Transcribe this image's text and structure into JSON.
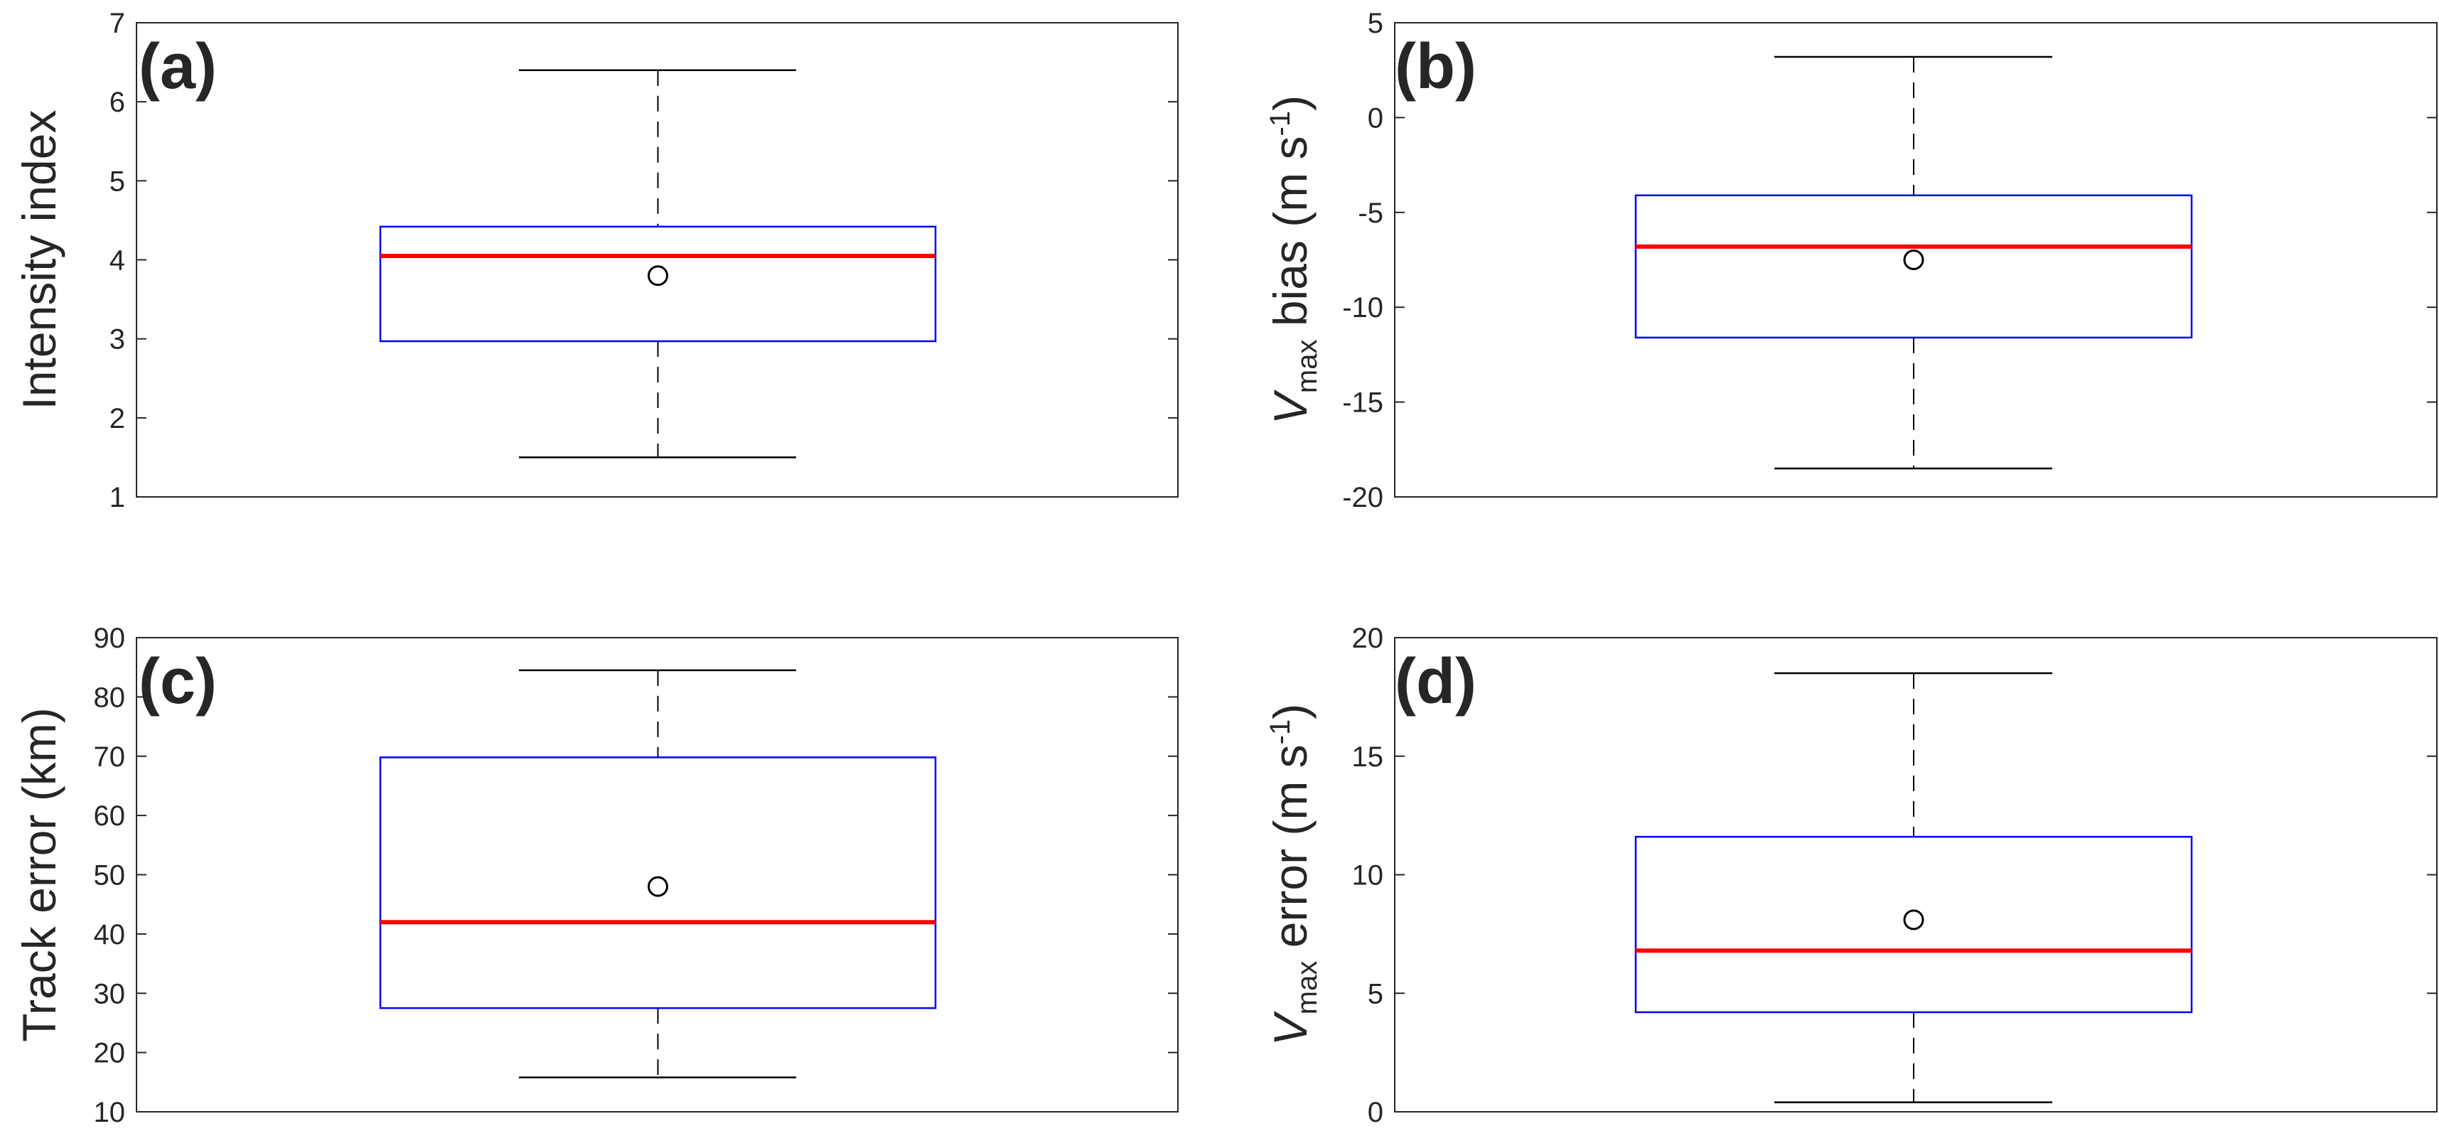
{
  "colors": {
    "box": "#0000ff",
    "median": "#ff0000",
    "whisker": "#000000",
    "axis": "#262626",
    "mean_marker": "#000000"
  },
  "chart_data": [
    {
      "type": "box",
      "panel_label": "(a)",
      "ylabel": {
        "main": "Intensity index"
      },
      "ylim": [
        1,
        7
      ],
      "yticks": [
        "1",
        "2",
        "3",
        "4",
        "5",
        "6",
        "7"
      ],
      "stats": {
        "whisker_low": 1.5,
        "q1": 2.97,
        "median": 4.05,
        "q3": 4.42,
        "whisker_high": 6.4,
        "mean": 3.8
      }
    },
    {
      "type": "box",
      "panel_label": "(b)",
      "ylabel": {
        "var": "V",
        "sub": "max",
        "text": " bias (m s",
        "sup": "-1",
        "close": ")"
      },
      "ylim": [
        -20,
        5
      ],
      "yticks": [
        "-20",
        "-15",
        "-10",
        "-5",
        "0",
        "5"
      ],
      "stats": {
        "whisker_low": -18.5,
        "q1": -11.6,
        "median": -6.8,
        "q3": -4.1,
        "whisker_high": 3.2,
        "mean": -7.5
      }
    },
    {
      "type": "box",
      "panel_label": "(c)",
      "ylabel": {
        "main": "Track error (km)"
      },
      "ylim": [
        10,
        90
      ],
      "yticks": [
        "10",
        "20",
        "30",
        "40",
        "50",
        "60",
        "70",
        "80",
        "90"
      ],
      "stats": {
        "whisker_low": 15.8,
        "q1": 27.5,
        "median": 42.0,
        "q3": 69.8,
        "whisker_high": 84.5,
        "mean": 48.0
      }
    },
    {
      "type": "box",
      "panel_label": "(d)",
      "ylabel": {
        "var": "V",
        "sub": "max",
        "text": " error (m s",
        "sup": "-1",
        "close": ")"
      },
      "ylim": [
        0,
        20
      ],
      "yticks": [
        "0",
        "5",
        "10",
        "15",
        "20"
      ],
      "stats": {
        "whisker_low": 0.4,
        "q1": 4.2,
        "median": 6.8,
        "q3": 11.6,
        "whisker_high": 18.5,
        "mean": 8.1
      }
    }
  ]
}
